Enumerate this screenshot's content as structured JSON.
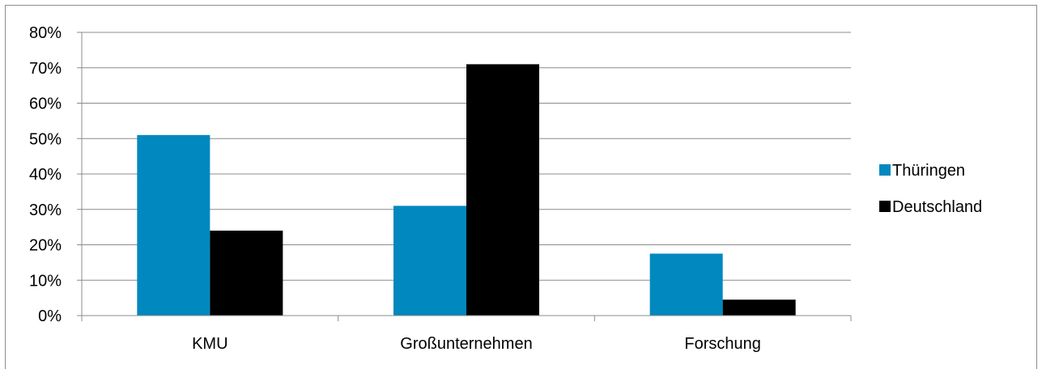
{
  "chart_data": {
    "type": "bar",
    "categories": [
      "KMU",
      "Großunternehmen",
      "Forschung"
    ],
    "series": [
      {
        "name": "Thüringen",
        "values": [
          51,
          31,
          17.5
        ],
        "color": "#0088bf"
      },
      {
        "name": "Deutschland",
        "values": [
          24,
          71,
          4.5
        ],
        "color": "#000000"
      }
    ],
    "ylim": [
      0,
      80
    ],
    "y_ticks": [
      "0%",
      "10%",
      "20%",
      "30%",
      "40%",
      "50%",
      "60%",
      "70%",
      "80%"
    ],
    "y_tick_values": [
      0,
      10,
      20,
      30,
      40,
      50,
      60,
      70,
      80
    ],
    "grid": true,
    "legend_position": "right",
    "gridline_color": "#8c8c8c"
  }
}
